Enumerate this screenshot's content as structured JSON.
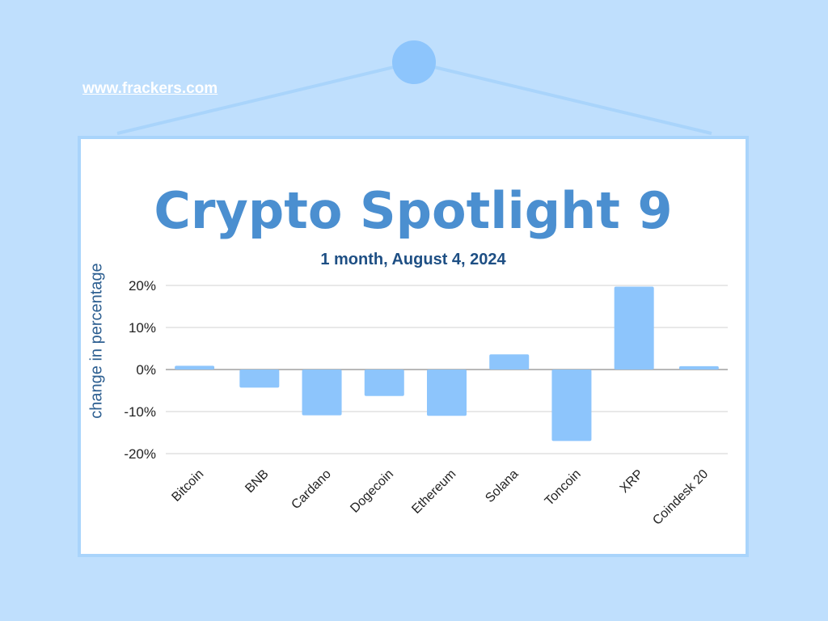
{
  "site_url": "www.frackers.com",
  "colors": {
    "background": "#bfdffd",
    "bar": "#8dc5fc",
    "title": "#4b8fd0",
    "subtitle": "#1e4f84"
  },
  "chart_data": {
    "type": "bar",
    "title": "Crypto Spotlight 9",
    "subtitle": "1 month, August 4, 2024",
    "xlabel": "",
    "ylabel": "change in percentage",
    "categories": [
      "Bitcoin",
      "BNB",
      "Cardano",
      "Dogecoin",
      "Ethereum",
      "Solana",
      "Toncoin",
      "XRP",
      "Coindesk 20"
    ],
    "values": [
      0.9,
      -4.3,
      -10.9,
      -6.3,
      -11.0,
      3.6,
      -17.0,
      19.7,
      0.8
    ],
    "ylim": [
      -20,
      20
    ],
    "yticks": [
      20,
      10,
      0,
      -10,
      -20
    ],
    "ytick_labels": [
      "20%",
      "10%",
      "0%",
      "-10%",
      "-20%"
    ],
    "grid": true,
    "legend": "none"
  }
}
